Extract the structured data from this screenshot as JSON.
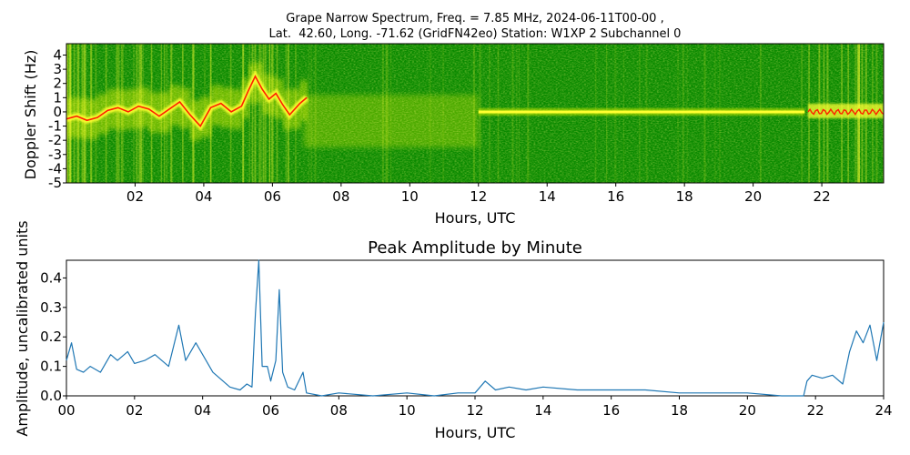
{
  "figure": {
    "title_line1": "Grape Narrow Spectrum, Freq. = 7.85 MHz, 2024-06-11T00-00 ,",
    "title_line2": "Lat.  42.60, Long. -71.62 (GridFN42eo) Station: W1XP 2 Subchannel 0"
  },
  "colors": {
    "spectrogram_background": "#0a8a00",
    "spectrogram_mid": "#c8e600",
    "spectrogram_high": "#ffff30",
    "spectrogram_peak": "#ff2000",
    "amplitude_line": "#1f77b4"
  },
  "chart_data": [
    {
      "type": "heatmap",
      "title": "",
      "xlabel": "Hours, UTC",
      "ylabel": "Doppler Shift (Hz)",
      "xlim": [
        0,
        23.8
      ],
      "ylim": [
        -5,
        4.8
      ],
      "x_ticks": [
        "02",
        "04",
        "06",
        "08",
        "10",
        "12",
        "14",
        "16",
        "18",
        "20",
        "22"
      ],
      "x_tick_values": [
        2,
        4,
        6,
        8,
        10,
        12,
        14,
        16,
        18,
        20,
        22
      ],
      "y_ticks": [
        "4",
        "3",
        "2",
        "1",
        "0",
        "-1",
        "-2",
        "-3",
        "-4",
        "-5"
      ],
      "y_tick_values": [
        4,
        3,
        2,
        1,
        0,
        -1,
        -2,
        -3,
        -4,
        -5
      ],
      "colormap": "green-yellow-red",
      "dominant_trace": {
        "hours": [
          0,
          0.3,
          0.6,
          0.9,
          1.2,
          1.5,
          1.8,
          2.1,
          2.4,
          2.7,
          3.0,
          3.3,
          3.6,
          3.9,
          4.2,
          4.5,
          4.8,
          5.1,
          5.3,
          5.5,
          5.7,
          5.9,
          6.1,
          6.3,
          6.5,
          6.8,
          7.0
        ],
        "doppler_hz": [
          -0.5,
          -0.3,
          -0.6,
          -0.4,
          0.1,
          0.3,
          0.0,
          0.4,
          0.2,
          -0.3,
          0.2,
          0.7,
          -0.2,
          -1.0,
          0.3,
          0.6,
          0.0,
          0.4,
          1.5,
          2.5,
          1.6,
          0.9,
          1.3,
          0.5,
          -0.2,
          0.6,
          1.0
        ]
      },
      "steady_carrier": {
        "from_hour": 12.0,
        "to_hour": 21.5,
        "doppler_hz": 0.0
      },
      "late_trace": {
        "from_hour": 21.6,
        "to_hour": 23.8,
        "doppler_hz": 0.0
      }
    },
    {
      "type": "line",
      "title": "Peak Amplitude by Minute",
      "xlabel": "Hours, UTC",
      "ylabel": "Amplitude, uncalibrated units",
      "xlim": [
        0,
        24
      ],
      "ylim": [
        0,
        0.46
      ],
      "grid": false,
      "x_ticks": [
        "00",
        "02",
        "04",
        "06",
        "08",
        "10",
        "12",
        "14",
        "16",
        "18",
        "20",
        "22",
        "24"
      ],
      "x_tick_values": [
        0,
        2,
        4,
        6,
        8,
        10,
        12,
        14,
        16,
        18,
        20,
        22,
        24
      ],
      "y_ticks": [
        "0.0",
        "0.1",
        "0.2",
        "0.3",
        "0.4"
      ],
      "y_tick_values": [
        0.0,
        0.1,
        0.2,
        0.3,
        0.4
      ],
      "series": [
        {
          "x": [
            0,
            0.15,
            0.3,
            0.5,
            0.7,
            1.0,
            1.3,
            1.5,
            1.8,
            2.0,
            2.3,
            2.6,
            3.0,
            3.3,
            3.5,
            3.8,
            4.1,
            4.3,
            4.5,
            4.8,
            5.1,
            5.3,
            5.45,
            5.55,
            5.65,
            5.75,
            5.9,
            6.0,
            6.15,
            6.25,
            6.35,
            6.5,
            6.7,
            6.95,
            7.05,
            7.5,
            8.0,
            9.0,
            10.0,
            10.8,
            11.5,
            12.0,
            12.3,
            12.6,
            13.0,
            13.5,
            14.0,
            15.0,
            16.0,
            17.0,
            18.0,
            19.0,
            20.0,
            21.0,
            21.65,
            21.75,
            21.9,
            22.2,
            22.5,
            22.8,
            23.0,
            23.2,
            23.4,
            23.6,
            23.8,
            24.0
          ],
          "y": [
            0.12,
            0.18,
            0.09,
            0.08,
            0.1,
            0.08,
            0.14,
            0.12,
            0.15,
            0.11,
            0.12,
            0.14,
            0.1,
            0.24,
            0.12,
            0.18,
            0.12,
            0.08,
            0.06,
            0.03,
            0.02,
            0.04,
            0.03,
            0.28,
            0.46,
            0.1,
            0.1,
            0.05,
            0.12,
            0.36,
            0.08,
            0.03,
            0.02,
            0.08,
            0.01,
            0.0,
            0.01,
            0.0,
            0.01,
            0.0,
            0.01,
            0.01,
            0.05,
            0.02,
            0.03,
            0.02,
            0.03,
            0.02,
            0.02,
            0.02,
            0.01,
            0.01,
            0.01,
            0.0,
            0.0,
            0.05,
            0.07,
            0.06,
            0.07,
            0.04,
            0.15,
            0.22,
            0.18,
            0.24,
            0.12,
            0.25
          ]
        }
      ]
    }
  ]
}
